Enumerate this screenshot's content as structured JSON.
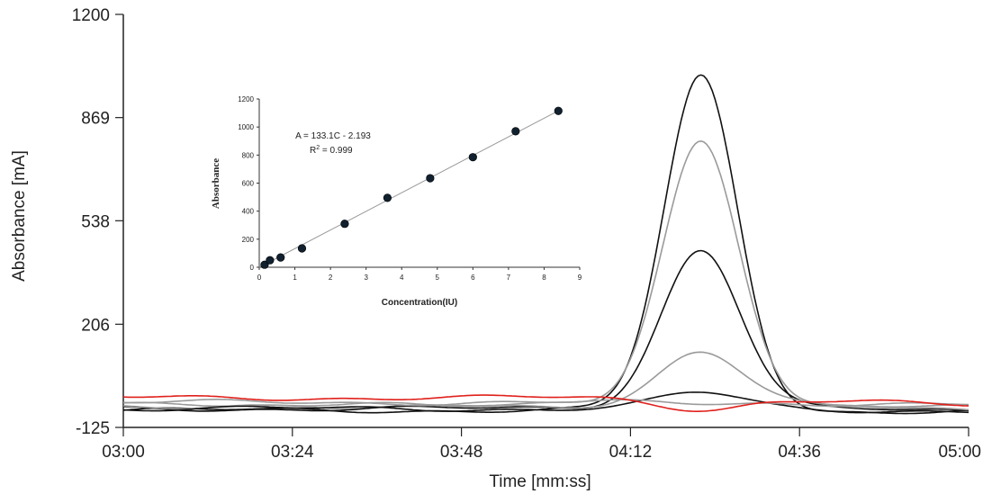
{
  "chart_data": [
    {
      "type": "line",
      "title": "",
      "xlabel": "Time [mm:ss]",
      "ylabel": "Absorbance [mA]",
      "x_tick_labels": [
        "03:00",
        "03:24",
        "03:48",
        "04:12",
        "04:36",
        "05:00"
      ],
      "y_tick_labels": [
        "-125",
        "206",
        "538",
        "869",
        "1200"
      ],
      "x_ticks_seconds": [
        180,
        204,
        228,
        252,
        276,
        300
      ],
      "y_ticks": [
        -125,
        206,
        538,
        869,
        1200
      ],
      "xlim_seconds": [
        180,
        300
      ],
      "ylim": [
        -125,
        1200
      ],
      "peak_time_seconds": 262,
      "grid": false,
      "series": [
        {
          "color": "#111111",
          "baseline": -70,
          "peak": 1000
        },
        {
          "color": "#9a9a9a",
          "baseline": -55,
          "peak": 795
        },
        {
          "color": "#111111",
          "baseline": -65,
          "peak": 445
        },
        {
          "color": "#9a9a9a",
          "baseline": -55,
          "peak": 115
        },
        {
          "color": "#111111",
          "baseline": -65,
          "peak": -15
        },
        {
          "color": "#9a9a9a",
          "baseline": -45,
          "peak": -48
        },
        {
          "color": "#e0201b",
          "baseline": -30,
          "peak": -65
        }
      ]
    },
    {
      "type": "scatter",
      "title": "",
      "xlabel": "Concentration(IU)",
      "ylabel": "Absorbance",
      "xlim": [
        0,
        9
      ],
      "ylim": [
        0,
        1200
      ],
      "x_ticks": [
        0,
        1,
        2,
        3,
        4,
        5,
        6,
        7,
        8,
        9
      ],
      "y_ticks": [
        0,
        200,
        400,
        600,
        800,
        1000,
        1200
      ],
      "points": [
        {
          "x": 0.15,
          "y": 18
        },
        {
          "x": 0.3,
          "y": 50
        },
        {
          "x": 0.6,
          "y": 70
        },
        {
          "x": 1.2,
          "y": 135
        },
        {
          "x": 2.4,
          "y": 310
        },
        {
          "x": 3.6,
          "y": 495
        },
        {
          "x": 4.8,
          "y": 635
        },
        {
          "x": 6.0,
          "y": 785
        },
        {
          "x": 7.2,
          "y": 970
        },
        {
          "x": 8.4,
          "y": 1115
        }
      ],
      "fit": {
        "slope": 133.1,
        "intercept": -2.193,
        "x_range": [
          0,
          8.5
        ]
      },
      "equation": "A = 133.1C - 2.193",
      "r_squared_label": "R",
      "r_squared_exp": "2",
      "r_squared_value": " = 0.999",
      "grid": false
    }
  ]
}
